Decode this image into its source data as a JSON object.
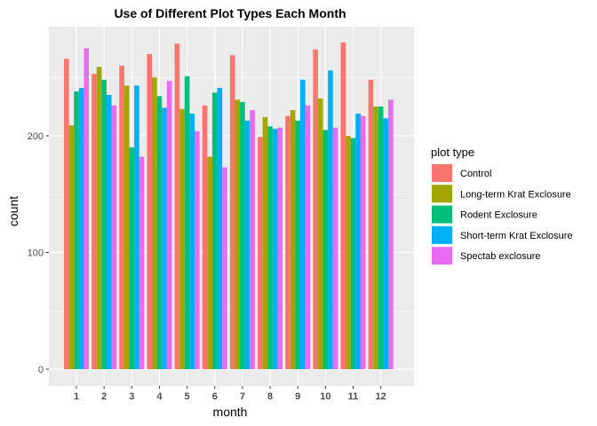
{
  "chart_data": {
    "type": "bar",
    "title": "Use of Different Plot Types Each Month",
    "xlabel": "month",
    "ylabel": "count",
    "categories": [
      "1",
      "2",
      "3",
      "4",
      "5",
      "6",
      "7",
      "8",
      "9",
      "10",
      "11",
      "12"
    ],
    "yticks": [
      0,
      100,
      200
    ],
    "ylim": [
      -8,
      290
    ],
    "grid": true,
    "legend": {
      "title": "plot type",
      "placement": "right"
    },
    "series": [
      {
        "name": "Control",
        "color": "#F8766D",
        "values": [
          266,
          253,
          260,
          270,
          279,
          226,
          269,
          199,
          217,
          274,
          280,
          248
        ]
      },
      {
        "name": "Long-term Krat Exclosure",
        "color": "#A3A500",
        "values": [
          209,
          259,
          243,
          250,
          223,
          182,
          231,
          216,
          222,
          232,
          200,
          225
        ]
      },
      {
        "name": "Rodent Exclosure",
        "color": "#00BF7D",
        "values": [
          238,
          248,
          190,
          234,
          251,
          237,
          229,
          208,
          213,
          205,
          198,
          225
        ]
      },
      {
        "name": "Short-term Krat Exclosure",
        "color": "#00B0F6",
        "values": [
          241,
          235,
          243,
          224,
          219,
          241,
          213,
          206,
          248,
          256,
          219,
          215
        ]
      },
      {
        "name": "Spectab exclosure",
        "color": "#E76BF3",
        "values": [
          275,
          226,
          182,
          247,
          204,
          173,
          222,
          207,
          226,
          207,
          217,
          231
        ]
      }
    ]
  }
}
